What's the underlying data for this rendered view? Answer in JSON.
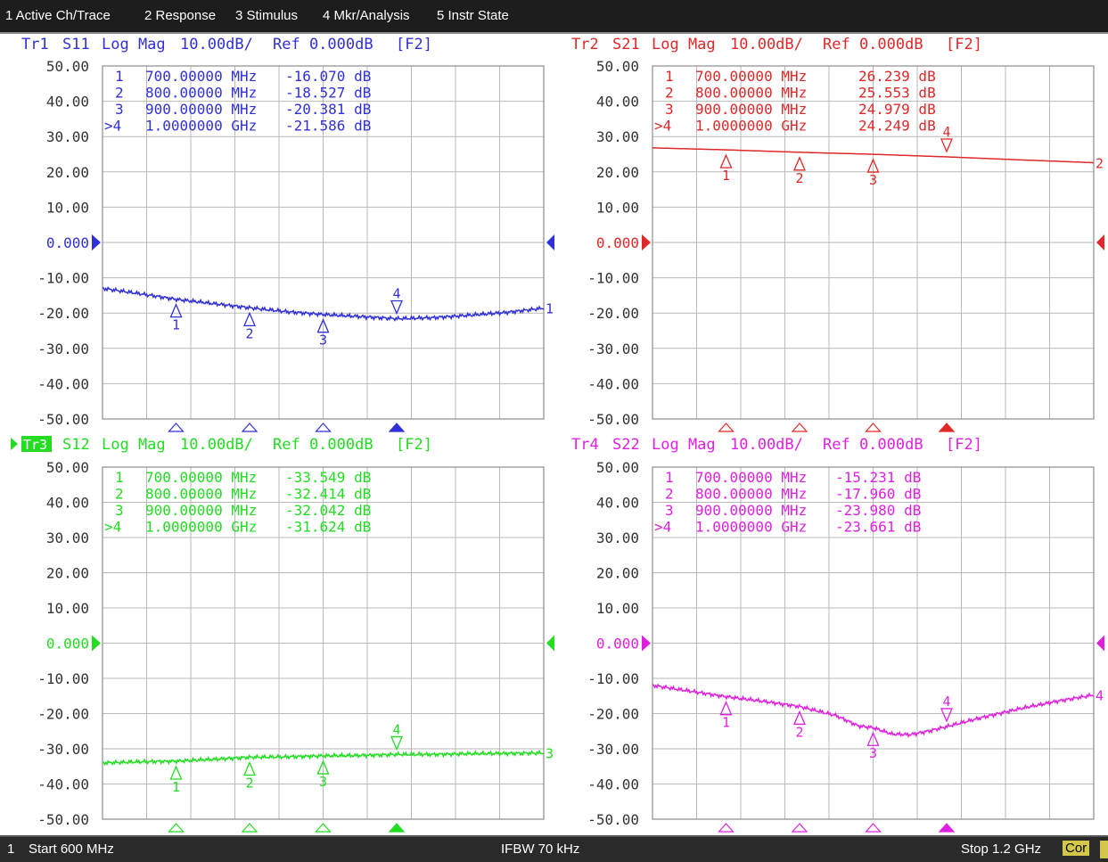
{
  "menu": {
    "items": [
      "1 Active Ch/Trace",
      "2 Response",
      "3 Stimulus",
      "4 Mkr/Analysis",
      "5 Instr State"
    ]
  },
  "status": {
    "channel": "1",
    "start": "Start 600 MHz",
    "ifbw": "IFBW 70 kHz",
    "stop": "Stop 1.2 GHz",
    "cor": "Cor"
  },
  "colors": {
    "grid": "#b9b9b9",
    "axis_text": "#333333",
    "tr1": "#3030d8",
    "tr2": "#e02828",
    "tr3": "#22dd22",
    "tr4": "#e020e0",
    "tr3_badge_bg": "#22dd22"
  },
  "chart_data": [
    {
      "type": "line",
      "trace": "Tr1",
      "param": "S11",
      "format": "Log Mag",
      "scale": "10.00dB/",
      "ref": "Ref 0.000dB",
      "tag": "[F2]",
      "active": false,
      "ref_label": "0.000",
      "y_ticks": [
        "50.00",
        "40.00",
        "30.00",
        "20.00",
        "10.00",
        "0.000",
        "-10.00",
        "-20.00",
        "-30.00",
        "-40.00",
        "-50.00"
      ],
      "ylim": [
        -50,
        50
      ],
      "xlim_mhz": [
        600,
        1200
      ],
      "end_label": "1",
      "markers": [
        {
          "num": "1",
          "freq": "700.00000 MHz",
          "value": "-16.070 dB",
          "x_mhz": 700,
          "y": -16.07
        },
        {
          "num": "2",
          "freq": "800.00000 MHz",
          "value": "-18.527 dB",
          "x_mhz": 800,
          "y": -18.527
        },
        {
          "num": "3",
          "freq": "900.00000 MHz",
          "value": "-20.381 dB",
          "x_mhz": 900,
          "y": -20.381
        },
        {
          "num": ">4",
          "freq": "1.0000000 GHz",
          "value": "-21.586 dB",
          "x_mhz": 1000,
          "y": -21.586
        }
      ],
      "points": [
        [
          600,
          -13.0
        ],
        [
          650,
          -14.5
        ],
        [
          700,
          -16.1
        ],
        [
          750,
          -17.3
        ],
        [
          800,
          -18.5
        ],
        [
          850,
          -19.6
        ],
        [
          900,
          -20.4
        ],
        [
          950,
          -21.0
        ],
        [
          1000,
          -21.6
        ],
        [
          1050,
          -21.3
        ],
        [
          1100,
          -20.6
        ],
        [
          1150,
          -19.8
        ],
        [
          1200,
          -18.6
        ]
      ]
    },
    {
      "type": "line",
      "trace": "Tr2",
      "param": "S21",
      "format": "Log Mag",
      "scale": "10.00dB/",
      "ref": "Ref 0.000dB",
      "tag": "[F2]",
      "active": false,
      "ref_label": "0.000",
      "y_ticks": [
        "50.00",
        "40.00",
        "30.00",
        "20.00",
        "10.00",
        "0.000",
        "-10.00",
        "-20.00",
        "-30.00",
        "-40.00",
        "-50.00"
      ],
      "ylim": [
        -50,
        50
      ],
      "xlim_mhz": [
        600,
        1200
      ],
      "end_label": "2",
      "markers": [
        {
          "num": "1",
          "freq": "700.00000 MHz",
          "value": "26.239 dB",
          "x_mhz": 700,
          "y": 26.239
        },
        {
          "num": "2",
          "freq": "800.00000 MHz",
          "value": "25.553 dB",
          "x_mhz": 800,
          "y": 25.553
        },
        {
          "num": "3",
          "freq": "900.00000 MHz",
          "value": "24.979 dB",
          "x_mhz": 900,
          "y": 24.979
        },
        {
          "num": ">4",
          "freq": "1.0000000 GHz",
          "value": "24.249 dB",
          "x_mhz": 1000,
          "y": 24.249
        }
      ],
      "points": [
        [
          600,
          26.8
        ],
        [
          700,
          26.24
        ],
        [
          800,
          25.55
        ],
        [
          900,
          24.98
        ],
        [
          1000,
          24.25
        ],
        [
          1100,
          23.4
        ],
        [
          1200,
          22.6
        ]
      ]
    },
    {
      "type": "line",
      "trace": "Tr3",
      "param": "S12",
      "format": "Log Mag",
      "scale": "10.00dB/",
      "ref": "Ref 0.000dB",
      "tag": "[F2]",
      "active": true,
      "ref_label": "0.000",
      "y_ticks": [
        "50.00",
        "40.00",
        "30.00",
        "20.00",
        "10.00",
        "0.000",
        "-10.00",
        "-20.00",
        "-30.00",
        "-40.00",
        "-50.00"
      ],
      "ylim": [
        -50,
        50
      ],
      "xlim_mhz": [
        600,
        1200
      ],
      "end_label": "3",
      "markers": [
        {
          "num": "1",
          "freq": "700.00000 MHz",
          "value": "-33.549 dB",
          "x_mhz": 700,
          "y": -33.549
        },
        {
          "num": "2",
          "freq": "800.00000 MHz",
          "value": "-32.414 dB",
          "x_mhz": 800,
          "y": -32.414
        },
        {
          "num": "3",
          "freq": "900.00000 MHz",
          "value": "-32.042 dB",
          "x_mhz": 900,
          "y": -32.042
        },
        {
          "num": ">4",
          "freq": "1.0000000 GHz",
          "value": "-31.624 dB",
          "x_mhz": 1000,
          "y": -31.624
        }
      ],
      "points": [
        [
          600,
          -34.0
        ],
        [
          650,
          -33.7
        ],
        [
          700,
          -33.5
        ],
        [
          750,
          -33.0
        ],
        [
          800,
          -32.4
        ],
        [
          850,
          -32.3
        ],
        [
          900,
          -32.0
        ],
        [
          950,
          -31.9
        ],
        [
          1000,
          -31.6
        ],
        [
          1050,
          -31.6
        ],
        [
          1100,
          -31.4
        ],
        [
          1150,
          -31.3
        ],
        [
          1200,
          -31.2
        ]
      ]
    },
    {
      "type": "line",
      "trace": "Tr4",
      "param": "S22",
      "format": "Log Mag",
      "scale": "10.00dB/",
      "ref": "Ref 0.000dB",
      "tag": "[F2]",
      "active": false,
      "ref_label": "0.000",
      "y_ticks": [
        "50.00",
        "40.00",
        "30.00",
        "20.00",
        "10.00",
        "0.000",
        "-10.00",
        "-20.00",
        "-30.00",
        "-40.00",
        "-50.00"
      ],
      "ylim": [
        -50,
        50
      ],
      "xlim_mhz": [
        600,
        1200
      ],
      "end_label": "4",
      "markers": [
        {
          "num": "1",
          "freq": "700.00000 MHz",
          "value": "-15.231 dB",
          "x_mhz": 700,
          "y": -15.231
        },
        {
          "num": "2",
          "freq": "800.00000 MHz",
          "value": "-17.960 dB",
          "x_mhz": 800,
          "y": -17.96
        },
        {
          "num": "3",
          "freq": "900.00000 MHz",
          "value": "-23.980 dB",
          "x_mhz": 900,
          "y": -23.98
        },
        {
          "num": ">4",
          "freq": "1.0000000 GHz",
          "value": "-23.661 dB",
          "x_mhz": 1000,
          "y": -23.661
        }
      ],
      "points": [
        [
          600,
          -12.0
        ],
        [
          650,
          -13.6
        ],
        [
          700,
          -15.2
        ],
        [
          750,
          -16.5
        ],
        [
          800,
          -18.0
        ],
        [
          850,
          -20.6
        ],
        [
          880,
          -23.5
        ],
        [
          900,
          -24.0
        ],
        [
          925,
          -25.8
        ],
        [
          950,
          -26.0
        ],
        [
          975,
          -25.0
        ],
        [
          1000,
          -23.7
        ],
        [
          1050,
          -21.0
        ],
        [
          1100,
          -18.6
        ],
        [
          1150,
          -16.5
        ],
        [
          1200,
          -14.7
        ]
      ]
    }
  ]
}
